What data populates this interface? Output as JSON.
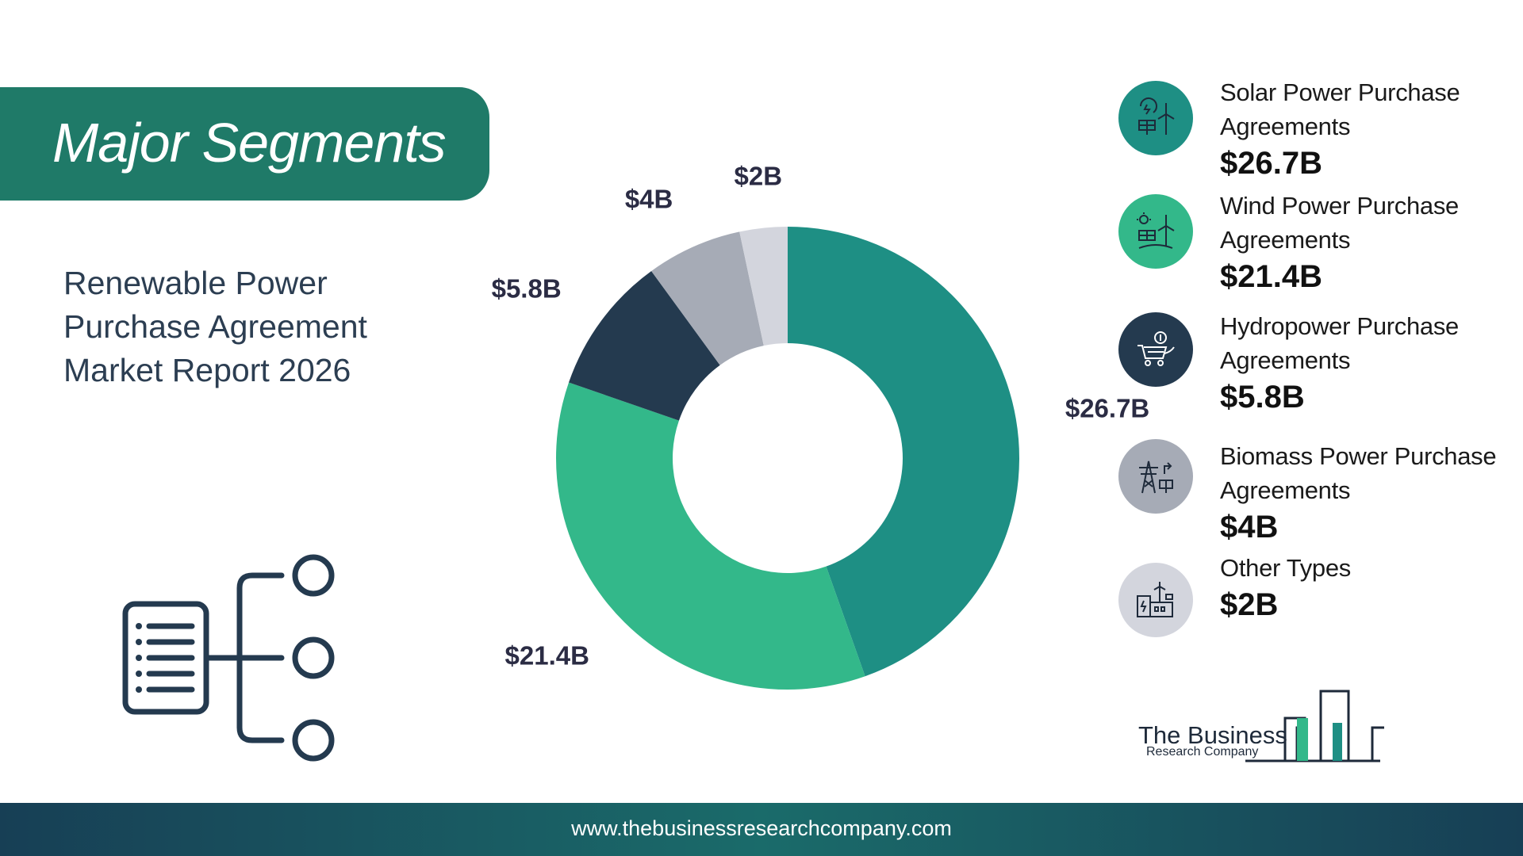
{
  "header": {
    "title": "Major Segments"
  },
  "report": {
    "title_lines": [
      "Renewable Power",
      "Purchase Agreement",
      "Market Report 2026"
    ]
  },
  "chart_data": {
    "type": "pie",
    "categories": [
      "Solar Power Purchase Agreements",
      "Wind Power Purchase Agreements",
      "Hydropower Purchase Agreements",
      "Biomass Power Purchase Agreements",
      "Other Types"
    ],
    "values": [
      26.7,
      21.4,
      5.8,
      4,
      2
    ],
    "value_labels": [
      "$26.7B",
      "$21.4B",
      "$5.8B",
      "$4B",
      "$2B"
    ],
    "colors": [
      "#1e8f84",
      "#33b88a",
      "#243a4f",
      "#a6abb6",
      "#d3d5dd"
    ]
  },
  "legend": {
    "items": [
      {
        "label_lines": [
          "Solar Power Purchase",
          "Agreements"
        ],
        "value": "$26.7B",
        "color": "#1e8f84",
        "icon": "solar-wind-icon"
      },
      {
        "label_lines": [
          "Wind Power Purchase",
          "Agreements"
        ],
        "value": "$21.4B",
        "color": "#33b88a",
        "icon": "wind-turbine-icon"
      },
      {
        "label_lines": [
          "Hydropower Purchase",
          "Agreements"
        ],
        "value": "$5.8B",
        "color": "#243a4f",
        "icon": "shopping-cart-icon"
      },
      {
        "label_lines": [
          "Biomass Power Purchase",
          "Agreements"
        ],
        "value": "$4B",
        "color": "#a6abb6",
        "icon": "power-tower-icon"
      },
      {
        "label_lines": [
          "Other Types"
        ],
        "value": "$2B",
        "color": "#d3d5dd",
        "icon": "factory-icon"
      }
    ]
  },
  "logo": {
    "line1": "The Business",
    "line2": "Research Company"
  },
  "footer": {
    "url": "www.thebusinessresearchcompany.com"
  }
}
